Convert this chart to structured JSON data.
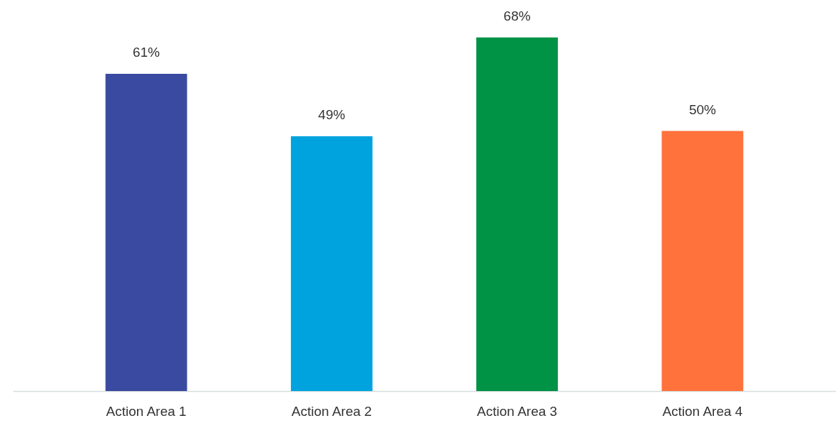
{
  "chart_data": {
    "type": "bar",
    "categories": [
      "Action Area 1",
      "Action Area 2",
      "Action Area 3",
      "Action Area 4"
    ],
    "values": [
      61,
      49,
      68,
      50
    ],
    "colors": [
      "#3a4aa0",
      "#00a3de",
      "#009245",
      "#ff723b"
    ],
    "value_labels": [
      "61%",
      "49%",
      "68%",
      "50%"
    ],
    "tick_labels": "x"
  }
}
